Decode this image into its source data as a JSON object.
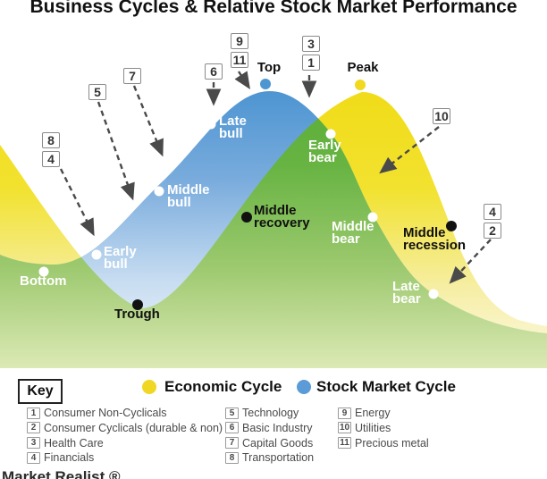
{
  "title": "Business Cycles & Relative Stock Market Performance",
  "colors": {
    "economic_yellow": "#F0DB15",
    "stock_blue": "#4E96D2",
    "overlap_green": "#66B345",
    "arrow_gray": "#4A4A4A"
  },
  "phases": [
    {
      "id": "bottom",
      "label": "Bottom",
      "series": "stock-market"
    },
    {
      "id": "early-bull",
      "label": "Early bull",
      "series": "stock-market"
    },
    {
      "id": "middle-bull",
      "label": "Middle bull",
      "series": "stock-market"
    },
    {
      "id": "late-bull",
      "label": "Late bull",
      "series": "stock-market"
    },
    {
      "id": "top",
      "label": "Top",
      "series": "stock-market"
    },
    {
      "id": "early-bear",
      "label": "Early bear",
      "series": "stock-market"
    },
    {
      "id": "middle-bear",
      "label": "Middle bear",
      "series": "stock-market"
    },
    {
      "id": "late-bear",
      "label": "Late bear",
      "series": "stock-market"
    },
    {
      "id": "trough",
      "label": "Trough",
      "series": "economic"
    },
    {
      "id": "middle-recovery",
      "label": "Middle recovery",
      "series": "economic"
    },
    {
      "id": "peak",
      "label": "Peak",
      "series": "economic"
    },
    {
      "id": "middle-recession",
      "label": "Middle recession",
      "series": "economic"
    }
  ],
  "callout_groups": [
    {
      "id": "m84",
      "numbers": [
        "8",
        "4"
      ]
    },
    {
      "id": "m5",
      "numbers": [
        "5"
      ]
    },
    {
      "id": "m7",
      "numbers": [
        "7"
      ]
    },
    {
      "id": "m6",
      "numbers": [
        "6"
      ]
    },
    {
      "id": "m911",
      "numbers": [
        "9",
        "11"
      ]
    },
    {
      "id": "m31",
      "numbers": [
        "3",
        "1"
      ]
    },
    {
      "id": "m10",
      "numbers": [
        "10"
      ]
    },
    {
      "id": "m42",
      "numbers": [
        "4",
        "2"
      ]
    }
  ],
  "key": {
    "title": "Key",
    "economic_label": "Economic Cycle",
    "stock_label": "Stock Market Cycle"
  },
  "sectors": [
    {
      "num": "1",
      "name": "Consumer Non-Cyclicals"
    },
    {
      "num": "2",
      "name": "Consumer Cyclicals (durable & non)"
    },
    {
      "num": "3",
      "name": "Health Care"
    },
    {
      "num": "4",
      "name": "Financials"
    },
    {
      "num": "5",
      "name": "Technology"
    },
    {
      "num": "6",
      "name": "Basic Industry"
    },
    {
      "num": "7",
      "name": "Capital Goods"
    },
    {
      "num": "8",
      "name": "Transportation"
    },
    {
      "num": "9",
      "name": "Energy"
    },
    {
      "num": "10",
      "name": "Utilities"
    },
    {
      "num": "11",
      "name": "Precious metal"
    }
  ],
  "watermark": "Market Realist ®"
}
